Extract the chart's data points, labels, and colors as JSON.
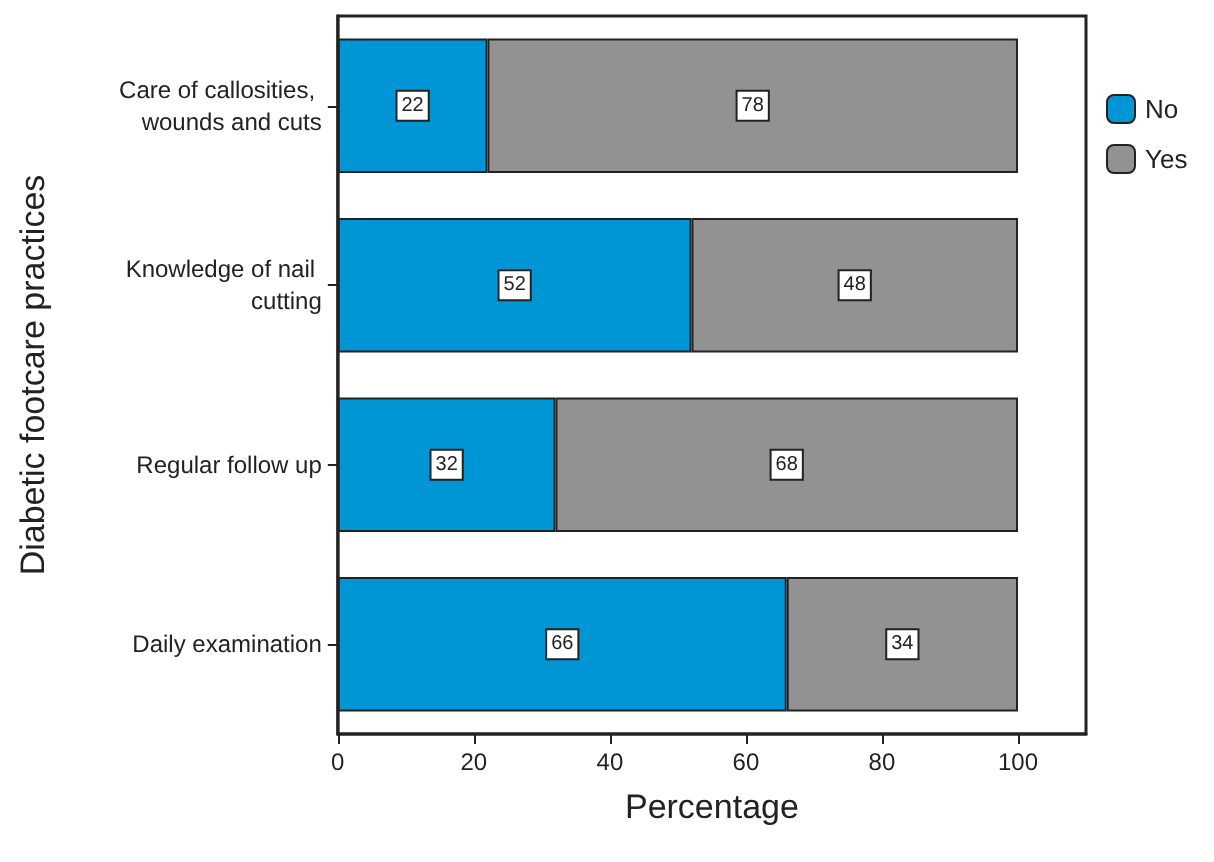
{
  "chart_data": {
    "type": "bar",
    "orientation": "horizontal",
    "stacked": true,
    "xlabel": "Percentage",
    "ylabel": "Diabetic footcare practices",
    "categories": [
      "Care of callosities, wounds and cuts",
      "Knowledge of nail cutting",
      "Regular follow up",
      "Daily examination"
    ],
    "series": [
      {
        "name": "No",
        "color": "#0096d6",
        "values": [
          22,
          52,
          32,
          66
        ]
      },
      {
        "name": "Yes",
        "color": "#929292",
        "values": [
          78,
          48,
          68,
          34
        ]
      }
    ],
    "xlim": [
      0,
      110
    ],
    "xticks": [
      0,
      20,
      40,
      60,
      80,
      100
    ],
    "data_labels": true,
    "grid": false,
    "legend": "top right"
  }
}
